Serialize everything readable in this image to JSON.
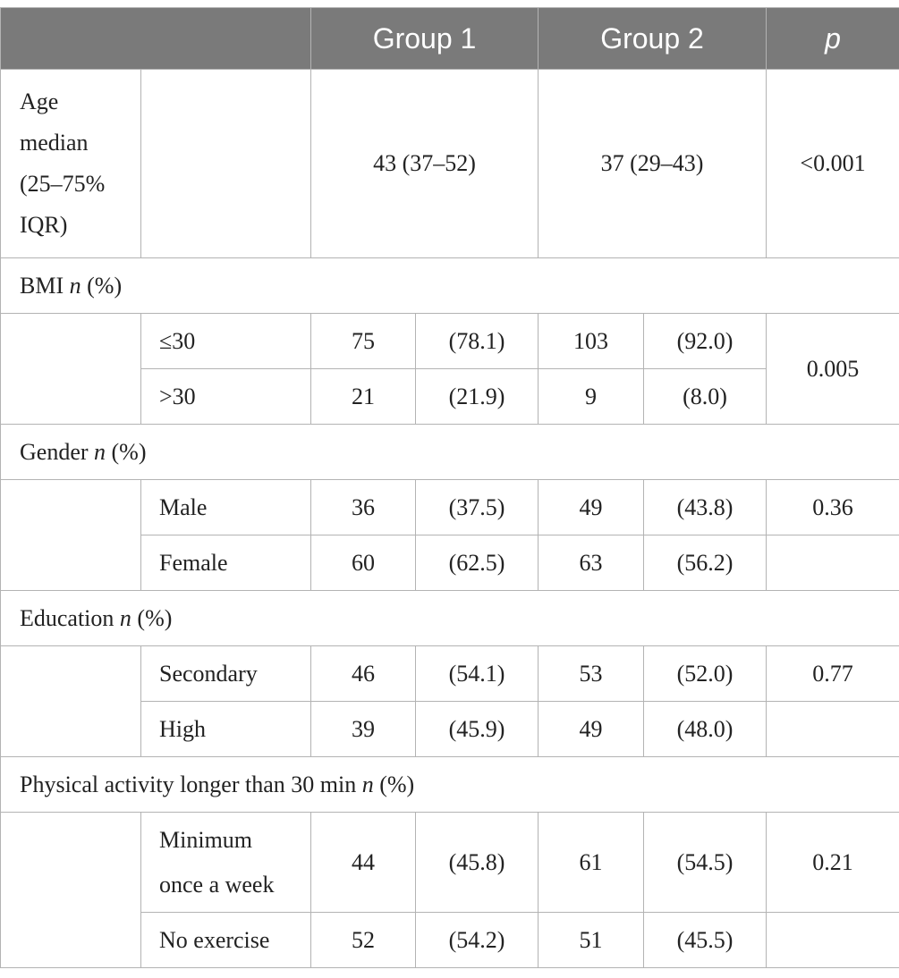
{
  "header": {
    "blank": "",
    "group1": "Group 1",
    "group2": "Group 2",
    "p": "p"
  },
  "age": {
    "label_lines": [
      "Age",
      "median",
      "(25–75%",
      "IQR)"
    ],
    "group1": "43 (37–52)",
    "group2": "37 (29–43)",
    "p": "<0.001"
  },
  "bmi": {
    "title": "BMI",
    "title_unit": " (%)",
    "n": "n",
    "rows": [
      {
        "label": "≤30",
        "g1_n": "75",
        "g1_pct": "(78.1)",
        "g2_n": "103",
        "g2_pct": "(92.0)"
      },
      {
        "label": ">30",
        "g1_n": "21",
        "g1_pct": "(21.9)",
        "g2_n": "9",
        "g2_pct": "(8.0)"
      }
    ],
    "p": "0.005"
  },
  "gender": {
    "title": "Gender",
    "title_unit": " (%)",
    "n": "n",
    "rows": [
      {
        "label": "Male",
        "g1_n": "36",
        "g1_pct": "(37.5)",
        "g2_n": "49",
        "g2_pct": "(43.8)"
      },
      {
        "label": "Female",
        "g1_n": "60",
        "g1_pct": "(62.5)",
        "g2_n": "63",
        "g2_pct": "(56.2)"
      }
    ],
    "p": "0.36"
  },
  "education": {
    "title": "Education",
    "title_unit": " (%)",
    "n": "n",
    "rows": [
      {
        "label": "Secondary",
        "g1_n": "46",
        "g1_pct": "(54.1)",
        "g2_n": "53",
        "g2_pct": "(52.0)"
      },
      {
        "label": "High",
        "g1_n": "39",
        "g1_pct": "(45.9)",
        "g2_n": "49",
        "g2_pct": "(48.0)"
      }
    ],
    "p": "0.77"
  },
  "activity": {
    "title": "Physical activity longer than 30 min",
    "title_unit": " (%)",
    "n": "n",
    "rows": [
      {
        "label_lines": [
          "Minimum",
          "once a week"
        ],
        "g1_n": "44",
        "g1_pct": "(45.8)",
        "g2_n": "61",
        "g2_pct": "(54.5)"
      },
      {
        "label": "No exercise",
        "g1_n": "52",
        "g1_pct": "(54.2)",
        "g2_n": "51",
        "g2_pct": "(45.5)"
      }
    ],
    "p": "0.21"
  }
}
